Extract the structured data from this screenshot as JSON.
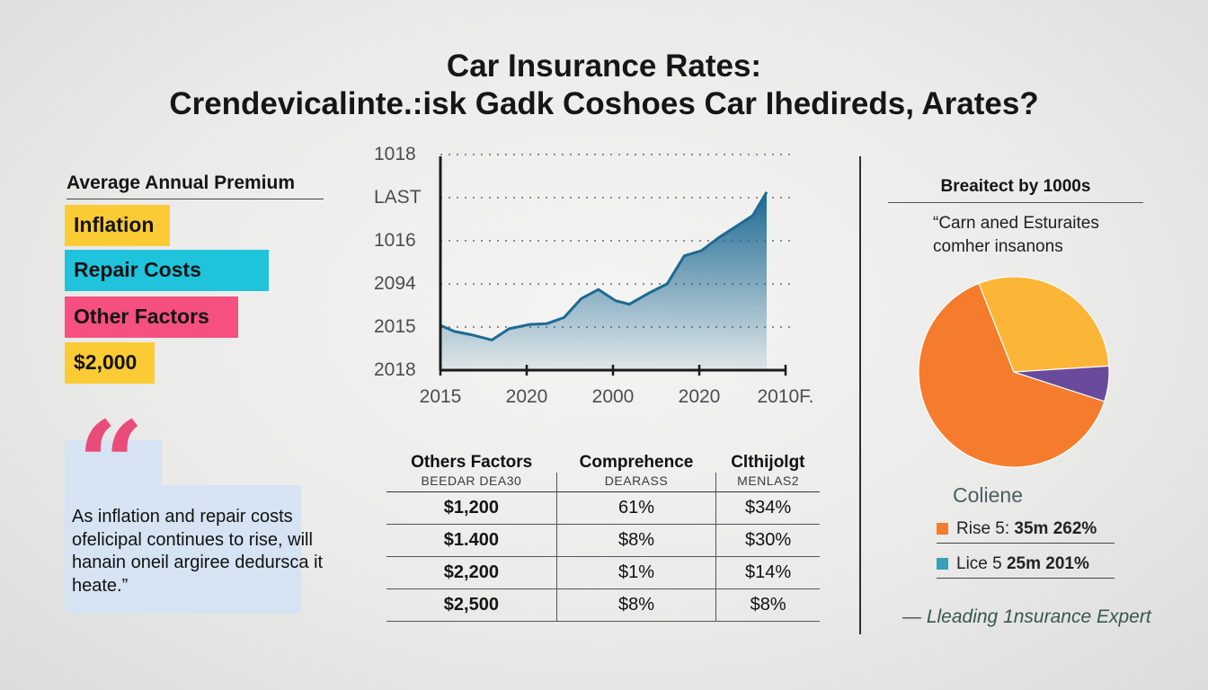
{
  "header": {
    "title_line1": "Car Insurance Rates:",
    "title_line2": "Crendevicalinte.:isk Gadk Coshoes Car Ihedireds, Arates?"
  },
  "left_panel": {
    "heading": "Average Annual Premium",
    "tags": [
      {
        "label": "Inflation",
        "color": "#fbcb35"
      },
      {
        "label": "Repair Costs",
        "color": "#20c3dc"
      },
      {
        "label": "Other Factors",
        "color": "#f5507f"
      },
      {
        "label": "$2,000",
        "color": "#fbcb35"
      }
    ]
  },
  "quote": {
    "mark": "“",
    "text": "As inflation and repair costs ofelicipal continues to rise, will hanain oneil argiree dedursca it heate.”"
  },
  "chart_data": [
    {
      "type": "area",
      "title": "",
      "xlabel": "",
      "ylabel": "",
      "x_tick_labels": [
        "2015",
        "2020",
        "2000",
        "2020",
        "2010F."
      ],
      "y_tick_labels": [
        "2018",
        "2015",
        "2094",
        "1016",
        "LAST",
        "1018"
      ],
      "ylim": [
        0,
        5
      ],
      "x": [
        0,
        0.2,
        0.45,
        0.75,
        1,
        1.3,
        1.55,
        1.8,
        2.05,
        2.3,
        2.55,
        2.75,
        3.05,
        3.3,
        3.55,
        3.8,
        4.05,
        4.3,
        4.55,
        4.75
      ],
      "values": [
        1.04,
        0.9,
        0.82,
        0.7,
        0.96,
        1.06,
        1.08,
        1.22,
        1.66,
        1.87,
        1.61,
        1.53,
        1.8,
        2.0,
        2.65,
        2.77,
        3.07,
        3.33,
        3.59,
        4.13
      ],
      "series": [
        {
          "name": "",
          "color": "#1d6a93"
        }
      ],
      "grid": true
    },
    {
      "type": "pie",
      "title": "Coliene",
      "slices": [
        {
          "label": "Rise 5: 35m 262%",
          "value": 64,
          "color": "#f47c2c"
        },
        {
          "label": "",
          "value": 30,
          "color": "#fbb537"
        },
        {
          "label": "",
          "value": 6,
          "color": "#6a4a9c"
        }
      ],
      "legend": [
        {
          "label": "Rise 5:",
          "value": "35m 262%",
          "color": "#f47c2c"
        },
        {
          "label": "Lice 5",
          "value": "25m 201%",
          "color": "#3a9fb9"
        }
      ]
    }
  ],
  "table": {
    "headers": [
      "Others Factors",
      "Comprehence",
      "Clthijolgt"
    ],
    "subheaders": [
      "BEEDAR DEA30",
      "DEARASS",
      "MENLAS2"
    ],
    "rows": [
      [
        "$1,200",
        "61%",
        "$34%"
      ],
      [
        "$1.400",
        "$8%",
        "$30%"
      ],
      [
        "$2,200",
        "$1%",
        "$14%"
      ],
      [
        "$2,500",
        "$8%",
        "$8%"
      ]
    ]
  },
  "right_panel": {
    "heading": "Breaitect by 1000s",
    "subtext": "“Carn aned Esturaites comher insanons",
    "credit": "— Lleading 1nsurance Expert"
  }
}
